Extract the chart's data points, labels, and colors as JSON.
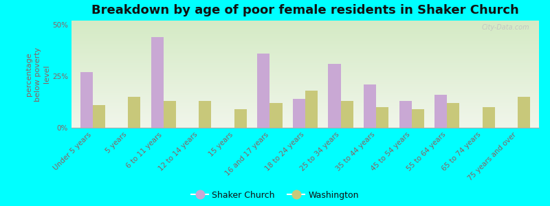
{
  "title": "Breakdown by age of poor female residents in Shaker Church",
  "ylabel": "percentage\nbelow poverty\nlevel",
  "categories": [
    "Under 5 years",
    "5 years",
    "6 to 11 years",
    "12 to 14 years",
    "15 years",
    "16 and 17 years",
    "18 to 24 years",
    "25 to 34 years",
    "35 to 44 years",
    "45 to 54 years",
    "55 to 64 years",
    "65 to 74 years",
    "75 years and over"
  ],
  "shaker_church": [
    27,
    0,
    44,
    0,
    0,
    36,
    14,
    31,
    21,
    13,
    16,
    0,
    0
  ],
  "washington": [
    11,
    15,
    13,
    13,
    9,
    12,
    18,
    13,
    10,
    9,
    12,
    10,
    15
  ],
  "shaker_color": "#c9a8d4",
  "washington_color": "#c8c87a",
  "bg_color": "#00ffff",
  "plot_bg_top": "#f0f5ea",
  "plot_bg_bottom": "#d4eac4",
  "yticks": [
    0,
    25,
    50
  ],
  "ylim": [
    0,
    52
  ],
  "bar_width": 0.35,
  "title_fontsize": 13,
  "axis_label_fontsize": 8,
  "tick_fontsize": 7.5,
  "legend_fontsize": 9,
  "watermark": "City-Data.com",
  "tick_color": "#8b6060",
  "label_color": "#8b6060"
}
